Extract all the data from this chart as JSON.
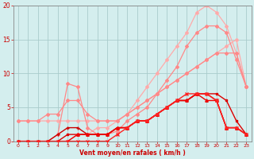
{
  "background_color": "#d4eeee",
  "grid_color": "#aacccc",
  "xlabel": "Vent moyen/en rafales ( km/h )",
  "xlabel_color": "#cc0000",
  "ylabel_color": "#cc0000",
  "tick_color": "#cc0000",
  "spine_color": "#888888",
  "xlim": [
    -0.5,
    23.5
  ],
  "ylim": [
    0,
    20
  ],
  "yticks": [
    0,
    5,
    10,
    15,
    20
  ],
  "xticks": [
    0,
    1,
    2,
    3,
    4,
    5,
    6,
    7,
    8,
    9,
    10,
    11,
    12,
    13,
    14,
    15,
    16,
    17,
    18,
    19,
    20,
    21,
    22,
    23
  ],
  "lines": [
    {
      "x": [
        0,
        1,
        2,
        3,
        4,
        5,
        6,
        7,
        8,
        9,
        10,
        11,
        12,
        13,
        14,
        15,
        16,
        17,
        18,
        19,
        20,
        21,
        22,
        23
      ],
      "y": [
        3,
        3,
        3,
        3,
        3,
        3,
        3,
        3,
        3,
        3,
        3,
        4,
        5,
        6,
        7,
        8,
        9,
        10,
        11,
        12,
        13,
        14,
        15,
        8
      ],
      "color": "#ffaaaa",
      "lw": 0.9,
      "marker": "D",
      "ms": 2.0,
      "zorder": 2
    },
    {
      "x": [
        0,
        1,
        2,
        3,
        4,
        5,
        6,
        7,
        8,
        9,
        10,
        11,
        12,
        13,
        14,
        15,
        16,
        17,
        18,
        19,
        20,
        21,
        22,
        23
      ],
      "y": [
        0,
        0,
        0,
        0,
        0,
        0,
        1,
        1,
        2,
        2,
        3,
        4,
        6,
        8,
        10,
        12,
        14,
        16,
        19,
        20,
        19,
        17,
        13,
        8
      ],
      "color": "#ffaaaa",
      "lw": 0.9,
      "marker": "D",
      "ms": 2.0,
      "zorder": 2
    },
    {
      "x": [
        0,
        1,
        2,
        3,
        4,
        5,
        6,
        7,
        8,
        9,
        10,
        11,
        12,
        13,
        14,
        15,
        16,
        17,
        18,
        19,
        20,
        21,
        22,
        23
      ],
      "y": [
        3,
        3,
        3,
        4,
        4,
        6,
        6,
        4,
        3,
        3,
        3,
        4,
        5,
        6,
        7,
        8,
        9,
        10,
        11,
        12,
        13,
        13,
        13,
        8
      ],
      "color": "#ff8888",
      "lw": 0.9,
      "marker": "D",
      "ms": 2.0,
      "zorder": 2
    },
    {
      "x": [
        0,
        3,
        4,
        5,
        6,
        7,
        8,
        9,
        10,
        11,
        12,
        13,
        14,
        15,
        16,
        17,
        18,
        19,
        20,
        21,
        22,
        23
      ],
      "y": [
        0,
        0,
        1,
        8.5,
        8,
        2,
        1,
        1,
        1.5,
        3,
        4,
        5,
        7,
        9,
        11,
        14,
        16,
        17,
        17,
        16,
        12,
        8
      ],
      "color": "#ff8888",
      "lw": 0.9,
      "marker": "D",
      "ms": 2.0,
      "zorder": 2
    },
    {
      "x": [
        0,
        1,
        2,
        3,
        4,
        5,
        6,
        7,
        8,
        9,
        10,
        11,
        12,
        13,
        14,
        15,
        16,
        17,
        18,
        19,
        20,
        21,
        22,
        23
      ],
      "y": [
        0,
        0,
        0,
        0,
        1,
        2,
        2,
        1,
        1,
        1,
        2,
        2,
        3,
        3,
        4,
        5,
        6,
        6,
        7,
        7,
        6,
        2,
        2,
        1
      ],
      "color": "#cc0000",
      "lw": 1.0,
      "marker": "+",
      "ms": 3.5,
      "zorder": 3
    },
    {
      "x": [
        0,
        1,
        2,
        3,
        4,
        5,
        6,
        7,
        8,
        9,
        10,
        11,
        12,
        13,
        14,
        15,
        16,
        17,
        18,
        19,
        20,
        21,
        22,
        23
      ],
      "y": [
        0,
        0,
        0,
        0,
        0,
        1,
        1,
        1,
        1,
        1,
        2,
        2,
        3,
        3,
        4,
        5,
        6,
        6,
        7,
        7,
        7,
        6,
        3,
        1
      ],
      "color": "#dd0000",
      "lw": 1.0,
      "marker": "s",
      "ms": 2.0,
      "zorder": 3
    },
    {
      "x": [
        0,
        1,
        2,
        3,
        4,
        5,
        6,
        7,
        8,
        9,
        10,
        11,
        12,
        13,
        14,
        15,
        16,
        17,
        18,
        19,
        20,
        21,
        22,
        23
      ],
      "y": [
        0,
        0,
        0,
        0,
        0,
        0,
        1,
        1,
        1,
        1,
        2,
        2,
        3,
        3,
        4,
        5,
        6,
        6,
        7,
        6,
        6,
        2,
        2,
        1
      ],
      "color": "#ee0000",
      "lw": 1.0,
      "marker": "^",
      "ms": 2.5,
      "zorder": 3
    },
    {
      "x": [
        0,
        1,
        2,
        3,
        4,
        5,
        6,
        7,
        8,
        9,
        10,
        11,
        12,
        13,
        14,
        15,
        16,
        17,
        18,
        19,
        20,
        21,
        22,
        23
      ],
      "y": [
        0,
        0,
        0,
        0,
        0,
        0,
        0,
        0,
        0,
        0,
        1,
        2,
        3,
        3,
        4,
        5,
        6,
        7,
        7,
        7,
        6,
        2,
        2,
        1
      ],
      "color": "#ff2222",
      "lw": 1.0,
      "marker": "x",
      "ms": 2.5,
      "zorder": 3
    }
  ]
}
